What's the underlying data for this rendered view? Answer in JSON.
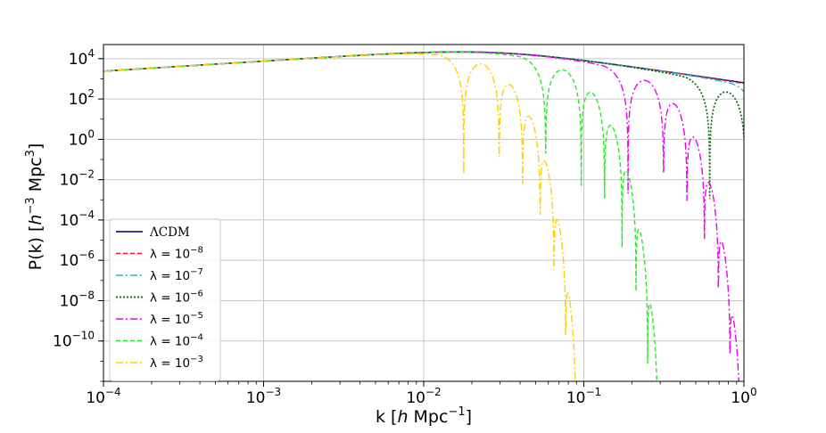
{
  "chart_data": {
    "type": "line",
    "xlabel": {
      "pre": "k    [",
      "italic": "h",
      "post": " Mpc",
      "sup": "−1",
      "close": "]"
    },
    "ylabel": {
      "pre": "P(k)    [",
      "italic": "h",
      "sup1": "−3",
      "mid": " Mpc",
      "sup2": "3",
      "close": "]"
    },
    "x_scale": "log",
    "y_scale": "log",
    "xlim": [
      0.0001,
      1
    ],
    "ylim": [
      1e-12,
      50000.0
    ],
    "grid": true,
    "legend_placement": "lower-left",
    "x_ticks": [
      {
        "value": 0.0001,
        "base": "10",
        "exp": "−4"
      },
      {
        "value": 0.001,
        "base": "10",
        "exp": "−3"
      },
      {
        "value": 0.01,
        "base": "10",
        "exp": "−2"
      },
      {
        "value": 0.1,
        "base": "10",
        "exp": "−1"
      },
      {
        "value": 1,
        "base": "10",
        "exp": "0"
      }
    ],
    "y_ticks": [
      {
        "value": 10000.0,
        "base": "10",
        "exp": "4"
      },
      {
        "value": 100.0,
        "base": "10",
        "exp": "2"
      },
      {
        "value": 1.0,
        "base": "10",
        "exp": "0"
      },
      {
        "value": 0.01,
        "base": "10",
        "exp": "−2"
      },
      {
        "value": 0.0001,
        "base": "10",
        "exp": "−4"
      },
      {
        "value": 1e-06,
        "base": "10",
        "exp": "−6"
      },
      {
        "value": 1e-08,
        "base": "10",
        "exp": "−8"
      },
      {
        "value": 1e-10,
        "base": "10",
        "exp": "−10"
      }
    ],
    "series": [
      {
        "name": "ΛCDM",
        "legend_prefix": "ΛCDM",
        "legend_exp": "",
        "cutoff_k": null,
        "color": "#1f1f8f",
        "dash": "",
        "width": 1.6
      },
      {
        "name": "λ = 10^-8",
        "legend_prefix": "λ = 10",
        "legend_exp": "−8",
        "cutoff_k": 2.0,
        "color": "#e41a1c",
        "dash": "5,3",
        "width": 1.4
      },
      {
        "name": "λ = 10^-7",
        "legend_prefix": "λ = 10",
        "legend_exp": "−7",
        "cutoff_k": 1.1,
        "color": "#17becf",
        "dash": "8,3,2,3",
        "width": 1.4
      },
      {
        "name": "λ = 10^-6",
        "legend_prefix": "λ = 10",
        "legend_exp": "−6",
        "cutoff_k": 0.55,
        "color": "#006400",
        "dash": "2,2",
        "width": 1.6
      },
      {
        "name": "λ = 10^-5",
        "legend_prefix": "λ = 10",
        "legend_exp": "−5",
        "cutoff_k": 0.17,
        "color": "#ee00ee",
        "dash": "8,3,2,3",
        "width": 1.4
      },
      {
        "name": "λ = 10^-4",
        "legend_prefix": "λ = 10",
        "legend_exp": "−4",
        "cutoff_k": 0.052,
        "color": "#22ee22",
        "dash": "5,3",
        "width": 1.4
      },
      {
        "name": "λ = 10^-3",
        "legend_prefix": "λ = 10",
        "legend_exp": "−3",
        "cutoff_k": 0.016,
        "color": "#ffd000",
        "dash": "8,3,2,3",
        "width": 1.4
      }
    ]
  }
}
